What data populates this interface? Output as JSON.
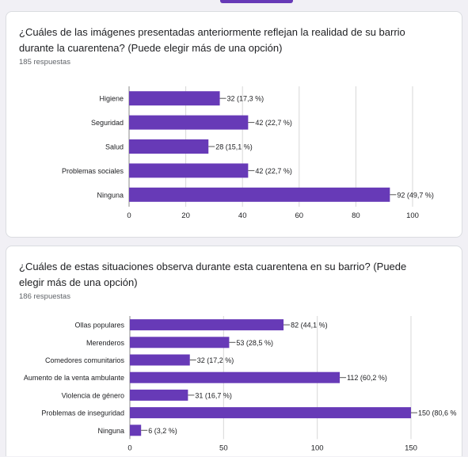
{
  "colors": {
    "bar": "#673ab7",
    "grid": "#d7d7d7",
    "axis": "#888888"
  },
  "charts": [
    {
      "title": "¿Cuáles de las imágenes presentadas anteriormente reflejan la realidad de su barrio durante la cuarentena? (Puede elegir más de una opción)",
      "responses": "185 respuestas"
    },
    {
      "title": "¿Cuáles de estas situaciones observa durante esta cuarentena en su barrio? (Puede elegir más de una opción)",
      "responses": "186 respuestas"
    }
  ],
  "chart_data": [
    {
      "type": "bar",
      "orientation": "horizontal",
      "title": "¿Cuáles de las imágenes presentadas anteriormente reflejan la realidad de su barrio durante la cuarentena? (Puede elegir más de una opción)",
      "categories": [
        "Higiene",
        "Seguridad",
        "Salud",
        "Problemas sociales",
        "Ninguna"
      ],
      "values": [
        32,
        42,
        28,
        42,
        92
      ],
      "data_labels": [
        "32 (17,3 %)",
        "42 (22,7 %)",
        "28 (15,1 %)",
        "42 (22,7 %)",
        "92 (49,7 %)"
      ],
      "xticks": [
        0,
        20,
        40,
        60,
        80,
        100
      ],
      "xlim": [
        0,
        100
      ],
      "grid": true
    },
    {
      "type": "bar",
      "orientation": "horizontal",
      "title": "¿Cuáles de estas situaciones observa durante esta cuarentena en su barrio? (Puede elegir más de una opción)",
      "categories": [
        "Ollas populares",
        "Merenderos",
        "Comedores comunitarios",
        "Aumento de la venta ambulante",
        "Violencia de género",
        "Problemas de inseguridad",
        "Ninguna"
      ],
      "values": [
        82,
        53,
        32,
        112,
        31,
        150,
        6
      ],
      "data_labels": [
        "82 (44,1 %)",
        "53 (28,5 %)",
        "32 (17,2 %)",
        "112 (60,2 %)",
        "31 (16,7 %)",
        "150 (80,6 %",
        "6 (3,2 %)"
      ],
      "xticks": [
        0,
        50,
        100,
        150
      ],
      "xlim": [
        0,
        150
      ],
      "grid": true
    }
  ]
}
